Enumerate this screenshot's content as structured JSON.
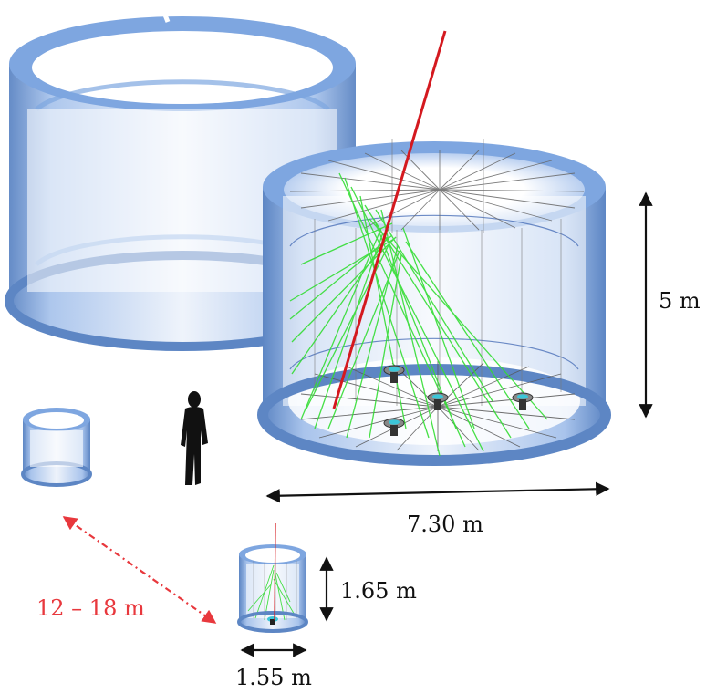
{
  "labels": {
    "large_height": "5 m",
    "large_diameter": "7.30 m",
    "small_height": "1.65 m",
    "small_diameter": "1.55 m",
    "separation": "12 – 18 m"
  },
  "colors": {
    "tank_wall": "#7ea6e0",
    "tank_edge": "#5d86c4",
    "muon_track": "#d4191f",
    "cherenkov_light": "#33dd33",
    "separation_arrow": "#e8383d",
    "dimension_arrow": "#111111",
    "pmt_glass": "#3cc6d8"
  },
  "icons": {
    "person": "person-silhouette-icon",
    "pmt": "photomultiplier-icon"
  }
}
